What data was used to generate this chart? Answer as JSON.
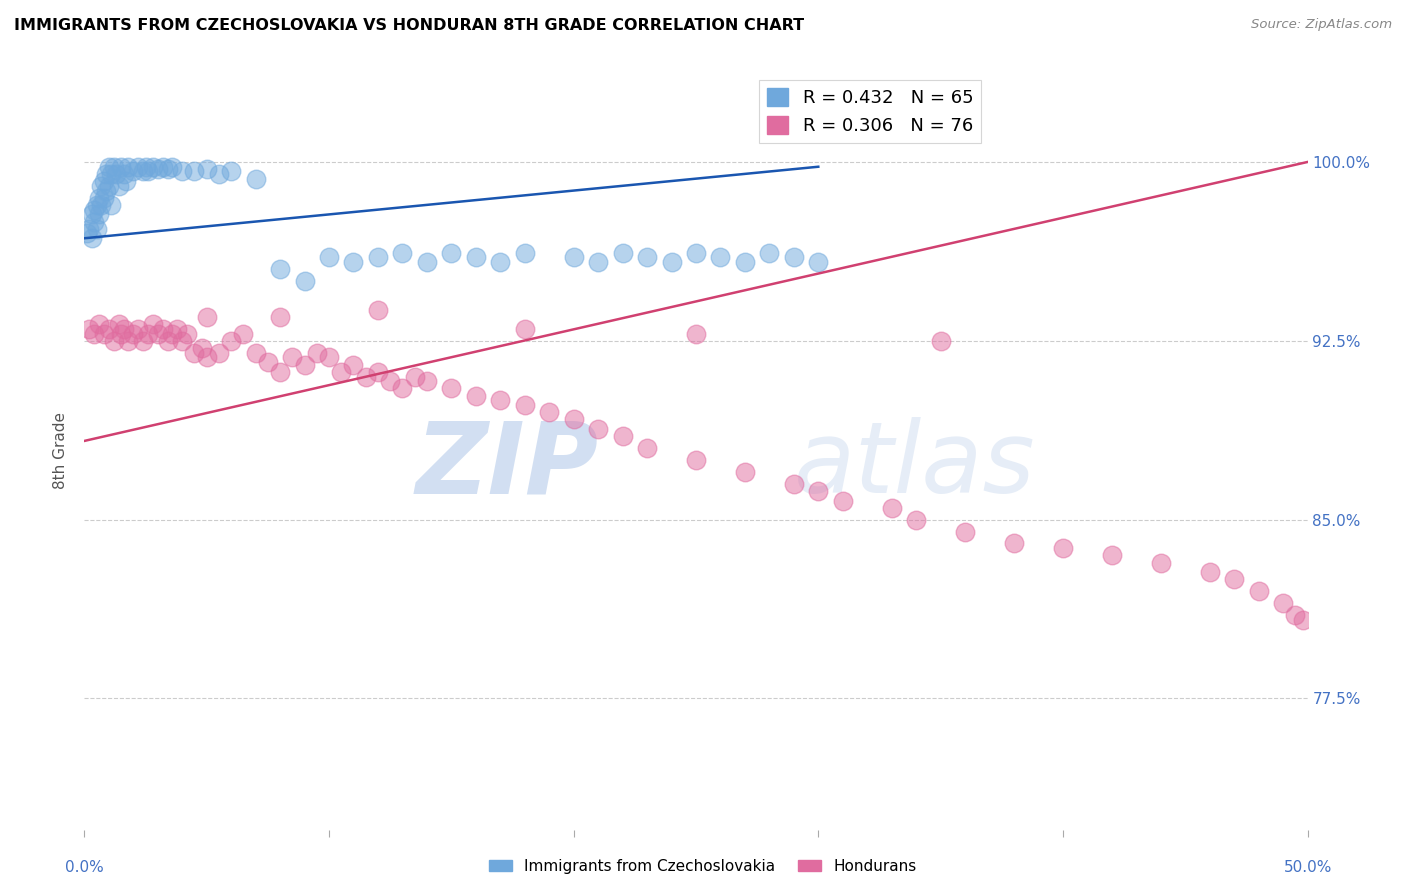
{
  "title": "IMMIGRANTS FROM CZECHOSLOVAKIA VS HONDURAN 8TH GRADE CORRELATION CHART",
  "source": "Source: ZipAtlas.com",
  "ylabel": "8th Grade",
  "ytick_labels": [
    "77.5%",
    "85.0%",
    "92.5%",
    "100.0%"
  ],
  "ytick_values": [
    0.775,
    0.85,
    0.925,
    1.0
  ],
  "xlim": [
    0.0,
    0.5
  ],
  "ylim": [
    0.72,
    1.038
  ],
  "blue_color": "#6fa8dc",
  "pink_color": "#e06c9f",
  "blue_line_color": "#1a56b0",
  "pink_line_color": "#d04070",
  "watermark_zip": "ZIP",
  "watermark_atlas": "atlas",
  "blue_x": [
    0.001,
    0.002,
    0.003,
    0.003,
    0.004,
    0.004,
    0.005,
    0.005,
    0.006,
    0.006,
    0.007,
    0.007,
    0.008,
    0.008,
    0.009,
    0.009,
    0.01,
    0.01,
    0.011,
    0.011,
    0.012,
    0.013,
    0.014,
    0.015,
    0.016,
    0.017,
    0.018,
    0.02,
    0.022,
    0.024,
    0.025,
    0.026,
    0.028,
    0.03,
    0.032,
    0.034,
    0.036,
    0.04,
    0.045,
    0.05,
    0.055,
    0.06,
    0.07,
    0.08,
    0.09,
    0.1,
    0.11,
    0.12,
    0.13,
    0.14,
    0.15,
    0.16,
    0.17,
    0.18,
    0.2,
    0.21,
    0.22,
    0.23,
    0.24,
    0.25,
    0.26,
    0.27,
    0.28,
    0.29,
    0.3
  ],
  "blue_y": [
    0.97,
    0.972,
    0.968,
    0.978,
    0.975,
    0.98,
    0.982,
    0.972,
    0.985,
    0.978,
    0.99,
    0.982,
    0.992,
    0.985,
    0.995,
    0.988,
    0.998,
    0.99,
    0.995,
    0.982,
    0.998,
    0.995,
    0.99,
    0.998,
    0.995,
    0.992,
    0.998,
    0.996,
    0.998,
    0.996,
    0.998,
    0.996,
    0.998,
    0.997,
    0.998,
    0.997,
    0.998,
    0.996,
    0.996,
    0.997,
    0.995,
    0.996,
    0.993,
    0.955,
    0.95,
    0.96,
    0.958,
    0.96,
    0.962,
    0.958,
    0.962,
    0.96,
    0.958,
    0.962,
    0.96,
    0.958,
    0.962,
    0.96,
    0.958,
    0.962,
    0.96,
    0.958,
    0.962,
    0.96,
    0.958
  ],
  "pink_x": [
    0.002,
    0.004,
    0.006,
    0.008,
    0.01,
    0.012,
    0.014,
    0.015,
    0.016,
    0.018,
    0.02,
    0.022,
    0.024,
    0.026,
    0.028,
    0.03,
    0.032,
    0.034,
    0.036,
    0.038,
    0.04,
    0.042,
    0.045,
    0.048,
    0.05,
    0.055,
    0.06,
    0.065,
    0.07,
    0.075,
    0.08,
    0.085,
    0.09,
    0.095,
    0.1,
    0.105,
    0.11,
    0.115,
    0.12,
    0.125,
    0.13,
    0.135,
    0.14,
    0.15,
    0.16,
    0.17,
    0.18,
    0.19,
    0.2,
    0.21,
    0.22,
    0.23,
    0.25,
    0.27,
    0.29,
    0.3,
    0.31,
    0.33,
    0.34,
    0.36,
    0.38,
    0.4,
    0.42,
    0.44,
    0.46,
    0.47,
    0.48,
    0.49,
    0.495,
    0.498,
    0.05,
    0.08,
    0.12,
    0.18,
    0.25,
    0.35
  ],
  "pink_y": [
    0.93,
    0.928,
    0.932,
    0.928,
    0.93,
    0.925,
    0.932,
    0.928,
    0.93,
    0.925,
    0.928,
    0.93,
    0.925,
    0.928,
    0.932,
    0.928,
    0.93,
    0.925,
    0.928,
    0.93,
    0.925,
    0.928,
    0.92,
    0.922,
    0.918,
    0.92,
    0.925,
    0.928,
    0.92,
    0.916,
    0.912,
    0.918,
    0.915,
    0.92,
    0.918,
    0.912,
    0.915,
    0.91,
    0.912,
    0.908,
    0.905,
    0.91,
    0.908,
    0.905,
    0.902,
    0.9,
    0.898,
    0.895,
    0.892,
    0.888,
    0.885,
    0.88,
    0.875,
    0.87,
    0.865,
    0.862,
    0.858,
    0.855,
    0.85,
    0.845,
    0.84,
    0.838,
    0.835,
    0.832,
    0.828,
    0.825,
    0.82,
    0.815,
    0.81,
    0.808,
    0.935,
    0.935,
    0.938,
    0.93,
    0.928,
    0.925
  ]
}
